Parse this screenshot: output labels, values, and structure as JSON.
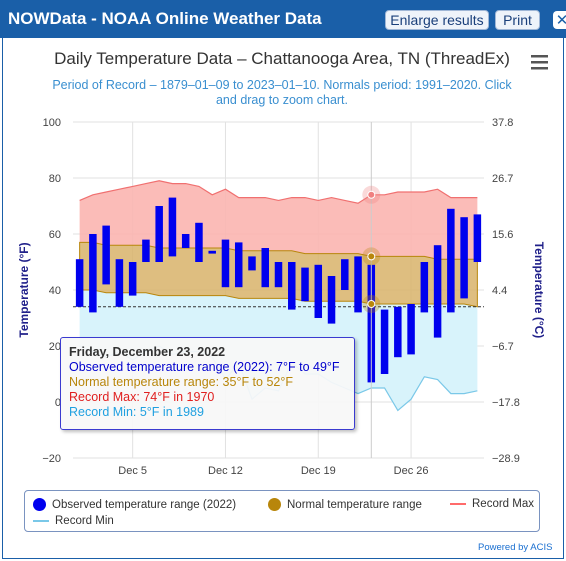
{
  "window": {
    "title": "NOWData - NOAA Online Weather Data",
    "buttons": {
      "enlarge": "Enlarge results",
      "print": "Print",
      "close": "✕"
    }
  },
  "colors": {
    "titlebar": "#1a5fa8",
    "observed": "#0000ee",
    "normal": "#b8860b",
    "record_max": "#ff6b6b",
    "record_min": "#7ac8e8"
  },
  "chart": {
    "title": "Daily Temperature Data – Chattanooga Area, TN (ThreadEx)",
    "subtitle_line1": "Period of Record – 1879–01–09 to 2023–01–10. Normals period: 1991–2020. Click",
    "subtitle_line2": "and drag to zoom chart.",
    "menu_icon": "hamburger-menu-icon",
    "y_left_label": "Temperature (°F)",
    "y_right_label": "Temperature (°C)",
    "y_left_ticks": [
      "100",
      "80",
      "60",
      "40",
      "20",
      "0",
      "−20"
    ],
    "y_right_ticks": [
      "37.8",
      "26.7",
      "15.6",
      "4.4",
      "−6.7",
      "−17.8",
      "−28.9"
    ],
    "x_ticks": [
      "Dec 5",
      "Dec 12",
      "Dec 19",
      "Dec 26"
    ],
    "legend": {
      "observed": "Observed temperature range (2022)",
      "normal": "Normal temperature range",
      "record_max": "Record Max",
      "record_min": "Record Min"
    },
    "credit": "Powered by ACIS",
    "tooltip": {
      "date": "Friday, December 23, 2022",
      "observed": "Observed temperature range (2022): 7°F to 49°F",
      "normal": "Normal temperature range: 35°F to 52°F",
      "record_max": "Record Max: 74°F in 1970",
      "record_min": "Record Min: 5°F in 1989"
    }
  },
  "chart_data": {
    "type": "bar",
    "title": "Daily Temperature Data – Chattanooga Area, TN (ThreadEx)",
    "xlabel": "",
    "ylabel": "Temperature (°F)",
    "ylabel_right": "Temperature (°C)",
    "ylim": [
      -20,
      100
    ],
    "ylim_right": [
      -28.9,
      37.8
    ],
    "grid": true,
    "legend_position": "bottom",
    "x_start_date": "2022-12-01",
    "categories": [
      "Dec 1",
      "Dec 2",
      "Dec 3",
      "Dec 4",
      "Dec 5",
      "Dec 6",
      "Dec 7",
      "Dec 8",
      "Dec 9",
      "Dec 10",
      "Dec 11",
      "Dec 12",
      "Dec 13",
      "Dec 14",
      "Dec 15",
      "Dec 16",
      "Dec 17",
      "Dec 18",
      "Dec 19",
      "Dec 20",
      "Dec 21",
      "Dec 22",
      "Dec 23",
      "Dec 24",
      "Dec 25",
      "Dec 26",
      "Dec 27",
      "Dec 28",
      "Dec 29",
      "Dec 30",
      "Dec 31"
    ],
    "observed_range": {
      "low": [
        34,
        32,
        42,
        34,
        38,
        50,
        50,
        52,
        55,
        50,
        53,
        41,
        41,
        47,
        41,
        41,
        33,
        36,
        30,
        28,
        40,
        32,
        7,
        10,
        16,
        17,
        32,
        23,
        32,
        37,
        50
      ],
      "high": [
        51,
        60,
        63,
        51,
        50,
        58,
        70,
        73,
        60,
        64,
        54,
        58,
        57,
        52,
        55,
        50,
        50,
        48,
        49,
        45,
        51,
        52,
        49,
        33,
        34,
        35,
        50,
        56,
        69,
        66,
        67
      ]
    },
    "normal_range": {
      "low": [
        40,
        40,
        39,
        39,
        39,
        39,
        38,
        38,
        38,
        38,
        38,
        38,
        37,
        37,
        37,
        37,
        37,
        36,
        36,
        36,
        36,
        36,
        35,
        35,
        35,
        35,
        35,
        35,
        35,
        35,
        34
      ],
      "high": [
        57,
        57,
        56,
        56,
        56,
        56,
        55,
        55,
        55,
        55,
        55,
        55,
        54,
        54,
        54,
        54,
        54,
        53,
        53,
        53,
        53,
        53,
        52,
        52,
        52,
        52,
        52,
        51,
        51,
        51,
        51
      ]
    },
    "record_max": [
      72,
      74,
      75,
      76,
      77,
      78,
      79,
      78,
      78,
      77,
      74,
      76,
      73,
      73,
      73,
      72,
      73,
      73,
      72,
      73,
      72,
      71,
      74,
      74,
      75,
      75,
      75,
      76,
      73,
      73,
      73
    ],
    "record_min": [
      20,
      18,
      16,
      18,
      15,
      18,
      20,
      17,
      18,
      18,
      16,
      8,
      14,
      1,
      5,
      4,
      14,
      10,
      10,
      7,
      5,
      3,
      5,
      5,
      -3,
      1,
      9,
      8,
      3,
      3,
      4
    ],
    "highlighted_day": "Dec 23",
    "normal_mean_reference_line": 34
  }
}
